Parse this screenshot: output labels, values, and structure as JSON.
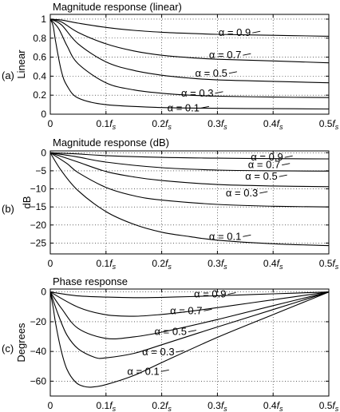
{
  "colors": {
    "line": "#000000",
    "background": "#ffffff"
  },
  "chart_data": [
    {
      "type": "line",
      "panel_label": "(a)",
      "title": "Magnitude response (linear)",
      "xlabel": "",
      "ylabel": "Linear",
      "xlim": [
        0,
        0.5
      ],
      "ylim": [
        0,
        1.05
      ],
      "xticks": [
        0,
        0.1,
        0.2,
        0.3,
        0.4,
        0.5
      ],
      "xtick_labels": [
        {
          "main": "0",
          "sub": ""
        },
        {
          "main": "0.1f",
          "sub": "s"
        },
        {
          "main": "0.2f",
          "sub": "s"
        },
        {
          "main": "0.3f",
          "sub": "s"
        },
        {
          "main": "0.4f",
          "sub": "s"
        },
        {
          "main": "0.5f",
          "sub": "s"
        }
      ],
      "yticks": [
        0,
        0.2,
        0.4,
        0.6,
        0.8,
        1
      ],
      "ytick_labels": [
        "0",
        "0.2",
        "0.4",
        "0.6",
        "0.8",
        "1"
      ],
      "grid": true,
      "series": [
        {
          "name": "α = 0.9",
          "label_at": [
            0.302,
            0.855
          ],
          "points": [
            [
              0,
              1
            ],
            [
              0.02,
              0.99
            ],
            [
              0.05,
              0.958
            ],
            [
              0.1,
              0.913
            ],
            [
              0.15,
              0.882
            ],
            [
              0.2,
              0.862
            ],
            [
              0.25,
              0.85
            ],
            [
              0.3,
              0.84
            ],
            [
              0.4,
              0.83
            ],
            [
              0.5,
              0.82
            ]
          ]
        },
        {
          "name": "α = 0.7",
          "label_at": [
            0.285,
            0.62
          ],
          "points": [
            [
              0,
              1
            ],
            [
              0.02,
              0.97
            ],
            [
              0.05,
              0.86
            ],
            [
              0.1,
              0.74
            ],
            [
              0.15,
              0.665
            ],
            [
              0.2,
              0.62
            ],
            [
              0.25,
              0.595
            ],
            [
              0.3,
              0.578
            ],
            [
              0.4,
              0.56
            ],
            [
              0.5,
              0.54
            ]
          ]
        },
        {
          "name": "α = 0.5",
          "label_at": [
            0.26,
            0.43
          ],
          "points": [
            [
              0,
              1
            ],
            [
              0.02,
              0.94
            ],
            [
              0.05,
              0.74
            ],
            [
              0.1,
              0.55
            ],
            [
              0.15,
              0.46
            ],
            [
              0.2,
              0.41
            ],
            [
              0.25,
              0.38
            ],
            [
              0.3,
              0.36
            ],
            [
              0.4,
              0.345
            ],
            [
              0.5,
              0.33
            ]
          ]
        },
        {
          "name": "α = 0.3",
          "label_at": [
            0.235,
            0.22
          ],
          "points": [
            [
              0,
              1
            ],
            [
              0.015,
              0.9
            ],
            [
              0.03,
              0.72
            ],
            [
              0.05,
              0.53
            ],
            [
              0.1,
              0.33
            ],
            [
              0.15,
              0.255
            ],
            [
              0.2,
              0.22
            ],
            [
              0.25,
              0.2
            ],
            [
              0.3,
              0.19
            ],
            [
              0.4,
              0.18
            ],
            [
              0.5,
              0.175
            ]
          ]
        },
        {
          "name": "α = 0.1",
          "label_at": [
            0.21,
            0.065
          ],
          "points": [
            [
              0,
              1
            ],
            [
              0.005,
              0.93
            ],
            [
              0.01,
              0.75
            ],
            [
              0.02,
              0.45
            ],
            [
              0.03,
              0.3
            ],
            [
              0.05,
              0.17
            ],
            [
              0.1,
              0.1
            ],
            [
              0.2,
              0.07
            ],
            [
              0.3,
              0.062
            ],
            [
              0.4,
              0.058
            ],
            [
              0.5,
              0.055
            ]
          ]
        }
      ]
    },
    {
      "type": "line",
      "panel_label": "(b)",
      "title": "Magnitude response (dB)",
      "xlabel": "",
      "ylabel": "dB",
      "xlim": [
        0,
        0.5
      ],
      "ylim": [
        -28,
        0.5
      ],
      "xticks": [
        0,
        0.1,
        0.2,
        0.3,
        0.4,
        0.5
      ],
      "xtick_labels": [
        {
          "main": "0",
          "sub": ""
        },
        {
          "main": "0.1f",
          "sub": "s"
        },
        {
          "main": "0.2f",
          "sub": "s"
        },
        {
          "main": "0.3f",
          "sub": "s"
        },
        {
          "main": "0.4f",
          "sub": "s"
        },
        {
          "main": "0.5f",
          "sub": "s"
        }
      ],
      "yticks": [
        0,
        -5,
        -10,
        -15,
        -20,
        -25
      ],
      "ytick_labels": [
        "0",
        "−5",
        "−10",
        "−15",
        "−20",
        "−25"
      ],
      "grid": true,
      "series": [
        {
          "name": "α = 0.9",
          "label_at": [
            0.36,
            -1.3
          ],
          "points": [
            [
              0,
              0
            ],
            [
              0.05,
              -0.35
            ],
            [
              0.1,
              -0.8
            ],
            [
              0.2,
              -1.3
            ],
            [
              0.3,
              -1.5
            ],
            [
              0.4,
              -1.65
            ],
            [
              0.5,
              -1.7
            ]
          ]
        },
        {
          "name": "α = 0.7",
          "label_at": [
            0.355,
            -3.4
          ],
          "points": [
            [
              0,
              0
            ],
            [
              0.05,
              -1.2
            ],
            [
              0.1,
              -2.6
            ],
            [
              0.2,
              -4.15
            ],
            [
              0.3,
              -4.8
            ],
            [
              0.4,
              -5.0
            ],
            [
              0.5,
              -5.1
            ]
          ]
        },
        {
          "name": "α = 0.5",
          "label_at": [
            0.35,
            -6.6
          ],
          "points": [
            [
              0,
              0
            ],
            [
              0.05,
              -2.6
            ],
            [
              0.1,
              -5.2
            ],
            [
              0.15,
              -6.7
            ],
            [
              0.2,
              -7.7
            ],
            [
              0.3,
              -8.8
            ],
            [
              0.4,
              -9.2
            ],
            [
              0.5,
              -9.4
            ]
          ]
        },
        {
          "name": "α = 0.3",
          "label_at": [
            0.315,
            -11.2
          ],
          "points": [
            [
              0,
              0
            ],
            [
              0.03,
              -3.0
            ],
            [
              0.05,
              -5.5
            ],
            [
              0.1,
              -9.6
            ],
            [
              0.15,
              -11.9
            ],
            [
              0.2,
              -13.1
            ],
            [
              0.3,
              -14.3
            ],
            [
              0.4,
              -14.8
            ],
            [
              0.5,
              -15.0
            ]
          ]
        },
        {
          "name": "α = 0.1",
          "label_at": [
            0.285,
            -23.2
          ],
          "points": [
            [
              0,
              0
            ],
            [
              0.02,
              -5.0
            ],
            [
              0.05,
              -10.5
            ],
            [
              0.1,
              -16.3
            ],
            [
              0.15,
              -19.8
            ],
            [
              0.2,
              -22.0
            ],
            [
              0.25,
              -23.2
            ],
            [
              0.3,
              -24.2
            ],
            [
              0.4,
              -25.2
            ],
            [
              0.5,
              -25.7
            ]
          ]
        }
      ]
    },
    {
      "type": "line",
      "panel_label": "(c)",
      "title": "Phase response",
      "xlabel": "",
      "ylabel": "Degrees",
      "xlim": [
        0,
        0.5
      ],
      "ylim": [
        -70,
        2
      ],
      "xticks": [
        0,
        0.1,
        0.2,
        0.3,
        0.4,
        0.5
      ],
      "xtick_labels": [
        {
          "main": "0",
          "sub": ""
        },
        {
          "main": "0.1f",
          "sub": "s"
        },
        {
          "main": "0.2f",
          "sub": "s"
        },
        {
          "main": "0.3f",
          "sub": "s"
        },
        {
          "main": "0.4f",
          "sub": "s"
        },
        {
          "main": "0.5f",
          "sub": "s"
        }
      ],
      "yticks": [
        0,
        -20,
        -40,
        -60
      ],
      "ytick_labels": [
        "0",
        "−20",
        "−40",
        "−60"
      ],
      "grid": true,
      "series": [
        {
          "name": "α = 0.9",
          "label_at": [
            0.258,
            -1.5
          ],
          "points": [
            [
              0,
              0
            ],
            [
              0.05,
              -2.6
            ],
            [
              0.1,
              -3.4
            ],
            [
              0.15,
              -3.8
            ],
            [
              0.2,
              -3.6
            ],
            [
              0.25,
              -3.1
            ],
            [
              0.3,
              -2.5
            ],
            [
              0.4,
              -1.2
            ],
            [
              0.5,
              0
            ]
          ]
        },
        {
          "name": "α = 0.7",
          "label_at": [
            0.215,
            -12.7
          ],
          "points": [
            [
              0,
              0
            ],
            [
              0.05,
              -10.2
            ],
            [
              0.1,
              -15.3
            ],
            [
              0.15,
              -16.3
            ],
            [
              0.2,
              -15.1
            ],
            [
              0.25,
              -13.0
            ],
            [
              0.3,
              -10.5
            ],
            [
              0.4,
              -5.2
            ],
            [
              0.5,
              0
            ]
          ]
        },
        {
          "name": "α = 0.5",
          "label_at": [
            0.187,
            -26.8
          ],
          "points": [
            [
              0,
              0
            ],
            [
              0.02,
              -11
            ],
            [
              0.05,
              -24.5
            ],
            [
              0.1,
              -31.2
            ],
            [
              0.15,
              -30.2
            ],
            [
              0.2,
              -27.0
            ],
            [
              0.3,
              -18.5
            ],
            [
              0.4,
              -9.2
            ],
            [
              0.5,
              0
            ]
          ]
        },
        {
          "name": "α = 0.3",
          "label_at": [
            0.165,
            -40.5
          ],
          "points": [
            [
              0,
              0
            ],
            [
              0.015,
              -16
            ],
            [
              0.03,
              -29
            ],
            [
              0.05,
              -38.2
            ],
            [
              0.08,
              -44.0
            ],
            [
              0.1,
              -44.3
            ],
            [
              0.15,
              -41.3
            ],
            [
              0.2,
              -35.5
            ],
            [
              0.3,
              -23.5
            ],
            [
              0.4,
              -11.8
            ],
            [
              0.5,
              0
            ]
          ]
        },
        {
          "name": "α = 0.1",
          "label_at": [
            0.138,
            -53.5
          ],
          "points": [
            [
              0,
              0
            ],
            [
              0.005,
              -10
            ],
            [
              0.01,
              -22
            ],
            [
              0.02,
              -40
            ],
            [
              0.03,
              -52
            ],
            [
              0.045,
              -60.5
            ],
            [
              0.06,
              -63.5
            ],
            [
              0.075,
              -64.0
            ],
            [
              0.1,
              -62.3
            ],
            [
              0.15,
              -56.2
            ],
            [
              0.2,
              -47.5
            ],
            [
              0.3,
              -30.5
            ],
            [
              0.4,
              -15.2
            ],
            [
              0.5,
              0
            ]
          ]
        }
      ]
    }
  ]
}
